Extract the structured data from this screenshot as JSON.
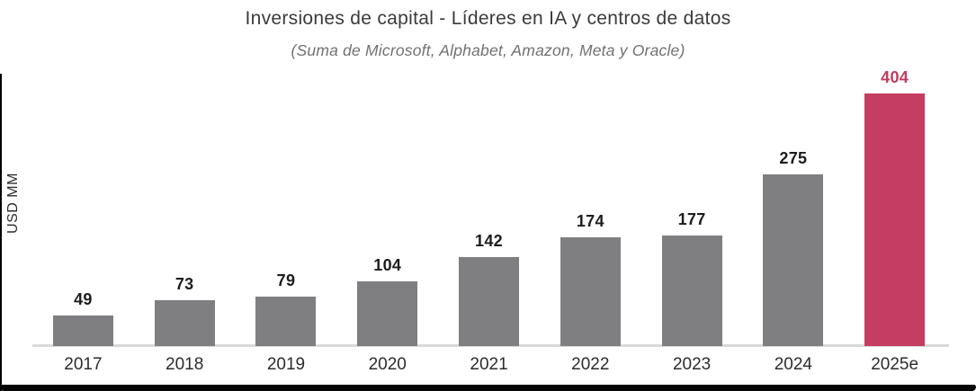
{
  "chart_data": {
    "type": "bar",
    "title": "Inversiones de capital - Líderes en IA y centros de datos",
    "subtitle": "(Suma de Microsoft, Alphabet, Amazon, Meta y Oracle)",
    "ylabel": "USD MM",
    "xlabel": "",
    "categories": [
      "2017",
      "2018",
      "2019",
      "2020",
      "2021",
      "2022",
      "2023",
      "2024",
      "2025e"
    ],
    "values": [
      49,
      73,
      79,
      104,
      142,
      174,
      177,
      275,
      404
    ],
    "highlight_index": 8,
    "ylim": [
      0,
      404
    ],
    "grid": false,
    "legend_position": "none",
    "data_labels": true,
    "colors": {
      "bar": "#7f7f81",
      "highlight_bar": "#c53d61",
      "value_label": "#1d1d1d",
      "highlight_value_label": "#c23c5f",
      "title": "#3b3b3b",
      "subtitle": "#717171",
      "axis_line": "#d9d9d9",
      "tick_label": "#2c2c2c"
    }
  }
}
